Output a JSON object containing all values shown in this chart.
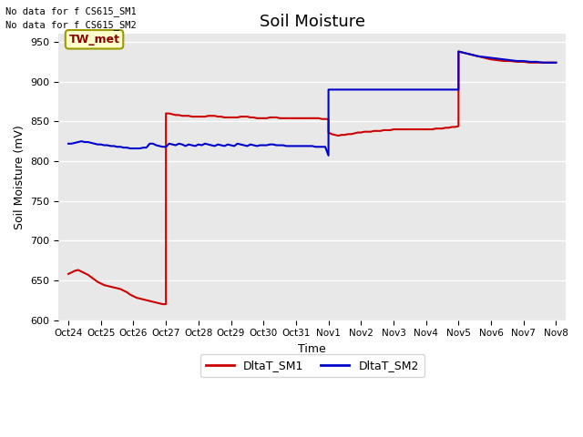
{
  "title": "Soil Moisture",
  "xlabel": "Time",
  "ylabel": "Soil Moisture (mV)",
  "ylim": [
    600,
    960
  ],
  "yticks": [
    600,
    650,
    700,
    750,
    800,
    850,
    900,
    950
  ],
  "bg_color": "#e8e8e8",
  "no_data_text1": "No data for f CS615_SM1",
  "no_data_text2": "No data for f CS615_SM2",
  "tw_met_label": "TW_met",
  "legend_sm1": "DltaT_SM1",
  "legend_sm2": "DltaT_SM2",
  "sm1_color": "#cc0000",
  "sm2_color": "#0000cc",
  "xtick_labels": [
    "Oct 24",
    "Oct 25",
    "Oct 26",
    "Oct 27",
    "Oct 28",
    "Oct 29",
    "Oct 30",
    "Oct 31",
    "Nov 1",
    "Nov 2",
    "Nov 3",
    "Nov 4",
    "Nov 5",
    "Nov 6",
    "Nov 7",
    "Nov 8"
  ],
  "sm1_x": [
    0,
    0.1,
    0.2,
    0.3,
    0.4,
    0.5,
    0.6,
    0.7,
    0.8,
    0.9,
    1.0,
    1.1,
    1.2,
    1.3,
    1.4,
    1.5,
    1.6,
    1.7,
    1.8,
    1.9,
    2.0,
    2.1,
    2.2,
    2.3,
    2.4,
    2.5,
    2.6,
    2.7,
    2.8,
    2.9,
    2.9999,
    3.0001,
    3.1,
    3.2,
    3.3,
    3.4,
    3.5,
    3.6,
    3.7,
    3.8,
    3.9,
    4.0,
    4.1,
    4.2,
    4.3,
    4.4,
    4.5,
    4.6,
    4.7,
    4.8,
    4.9,
    5.0,
    5.1,
    5.2,
    5.3,
    5.4,
    5.5,
    5.6,
    5.7,
    5.8,
    5.9,
    6.0,
    6.1,
    6.2,
    6.3,
    6.4,
    6.5,
    6.6,
    6.7,
    6.8,
    6.9,
    7.0,
    7.1,
    7.2,
    7.3,
    7.4,
    7.5,
    7.6,
    7.7,
    7.8,
    7.9,
    7.9999,
    8.0001,
    8.1,
    8.2,
    8.3,
    8.4,
    8.5,
    8.6,
    8.7,
    8.8,
    8.9,
    9.0,
    9.1,
    9.2,
    9.3,
    9.4,
    9.5,
    9.6,
    9.7,
    9.8,
    9.9,
    10.0,
    10.1,
    10.2,
    10.3,
    10.4,
    10.5,
    10.6,
    10.7,
    10.8,
    10.9,
    11.0,
    11.1,
    11.2,
    11.3,
    11.4,
    11.5,
    11.6,
    11.7,
    11.8,
    11.9,
    11.9999,
    12.0001,
    12.1,
    12.2,
    12.3,
    12.4,
    12.5,
    12.6,
    12.7,
    12.8,
    12.9,
    13.0,
    13.2,
    13.4,
    13.6,
    13.8,
    14.0,
    14.2,
    14.4,
    14.6,
    14.8,
    15.0
  ],
  "sm1_y": [
    658,
    660,
    662,
    663,
    661,
    659,
    657,
    654,
    651,
    648,
    646,
    644,
    643,
    642,
    641,
    640,
    639,
    637,
    635,
    632,
    630,
    628,
    627,
    626,
    625,
    624,
    623,
    622,
    621,
    620,
    620,
    860,
    860,
    859,
    858,
    858,
    857,
    857,
    857,
    856,
    856,
    856,
    856,
    856,
    857,
    857,
    857,
    856,
    856,
    855,
    855,
    855,
    855,
    855,
    856,
    856,
    856,
    855,
    855,
    854,
    854,
    854,
    854,
    855,
    855,
    855,
    854,
    854,
    854,
    854,
    854,
    854,
    854,
    854,
    854,
    854,
    854,
    854,
    854,
    853,
    853,
    853,
    836,
    834,
    833,
    832,
    833,
    833,
    834,
    834,
    835,
    836,
    836,
    837,
    837,
    837,
    838,
    838,
    838,
    839,
    839,
    839,
    840,
    840,
    840,
    840,
    840,
    840,
    840,
    840,
    840,
    840,
    840,
    840,
    840,
    841,
    841,
    841,
    842,
    842,
    843,
    843,
    844,
    938,
    937,
    936,
    935,
    934,
    933,
    932,
    931,
    930,
    929,
    928,
    927,
    926,
    926,
    925,
    925,
    924,
    924,
    924,
    924,
    924
  ],
  "sm2_x": [
    0,
    0.1,
    0.2,
    0.3,
    0.4,
    0.5,
    0.6,
    0.7,
    0.8,
    0.9,
    1.0,
    1.1,
    1.2,
    1.3,
    1.4,
    1.5,
    1.6,
    1.7,
    1.8,
    1.9,
    2.0,
    2.1,
    2.2,
    2.3,
    2.4,
    2.5,
    2.6,
    2.7,
    2.8,
    2.9,
    3.0,
    3.1,
    3.2,
    3.3,
    3.4,
    3.5,
    3.6,
    3.7,
    3.8,
    3.9,
    4.0,
    4.1,
    4.2,
    4.3,
    4.4,
    4.5,
    4.6,
    4.7,
    4.8,
    4.9,
    5.0,
    5.1,
    5.2,
    5.3,
    5.4,
    5.5,
    5.6,
    5.7,
    5.8,
    5.9,
    6.0,
    6.1,
    6.2,
    6.3,
    6.4,
    6.5,
    6.6,
    6.7,
    6.8,
    6.9,
    7.0,
    7.1,
    7.2,
    7.3,
    7.4,
    7.5,
    7.6,
    7.7,
    7.8,
    7.9,
    7.9999,
    8.0001,
    8.1,
    8.2,
    8.3,
    8.4,
    8.5,
    8.6,
    8.7,
    8.8,
    8.9,
    9.0,
    9.2,
    9.4,
    9.6,
    9.8,
    10.0,
    10.2,
    10.4,
    10.6,
    10.8,
    11.0,
    11.2,
    11.4,
    11.6,
    11.8,
    11.9999,
    12.0001,
    12.2,
    12.4,
    12.6,
    12.8,
    13.0,
    13.2,
    13.4,
    13.6,
    13.8,
    14.0,
    14.2,
    14.4,
    14.6,
    14.8,
    15.0
  ],
  "sm2_y": [
    822,
    822,
    823,
    824,
    825,
    824,
    824,
    823,
    822,
    821,
    821,
    820,
    820,
    819,
    819,
    818,
    818,
    817,
    817,
    816,
    816,
    816,
    816,
    817,
    817,
    822,
    822,
    820,
    819,
    818,
    818,
    822,
    821,
    820,
    822,
    821,
    819,
    821,
    820,
    819,
    821,
    820,
    822,
    821,
    820,
    819,
    821,
    820,
    819,
    821,
    820,
    819,
    822,
    821,
    820,
    819,
    821,
    820,
    819,
    820,
    820,
    820,
    821,
    821,
    820,
    820,
    820,
    819,
    819,
    819,
    819,
    819,
    819,
    819,
    819,
    819,
    818,
    818,
    818,
    818,
    807,
    890,
    890,
    890,
    890,
    890,
    890,
    890,
    890,
    890,
    890,
    890,
    890,
    890,
    890,
    890,
    890,
    890,
    890,
    890,
    890,
    890,
    890,
    890,
    890,
    890,
    890,
    938,
    936,
    934,
    932,
    931,
    930,
    929,
    928,
    927,
    926,
    926,
    925,
    925,
    924,
    924,
    924
  ]
}
